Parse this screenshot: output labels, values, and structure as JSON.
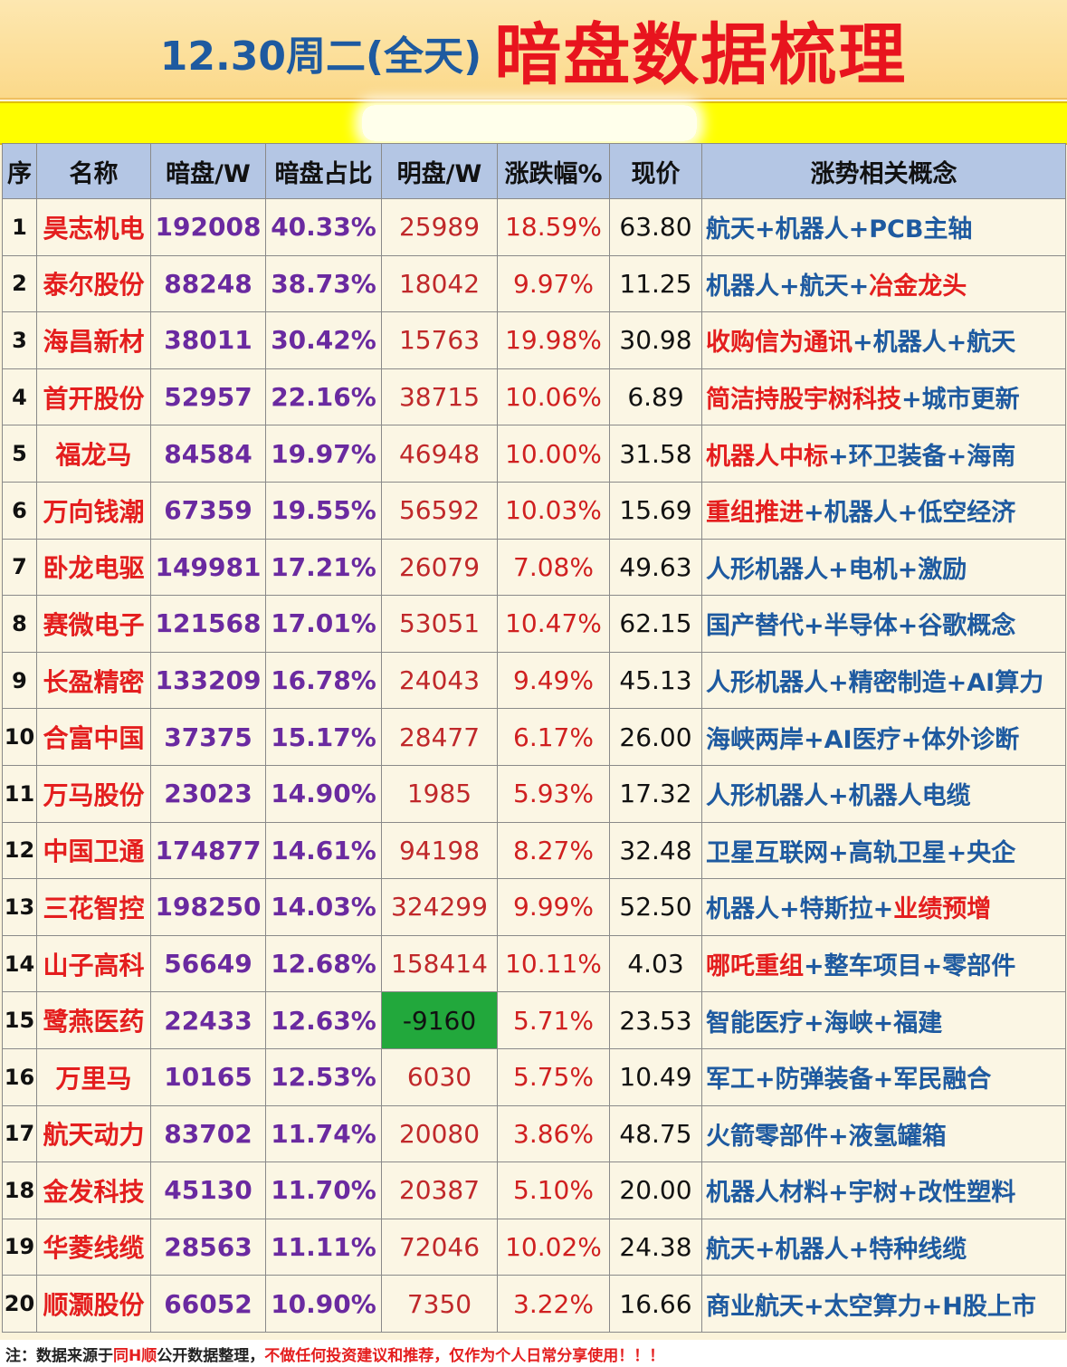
{
  "title": {
    "date": "12.30周二(全天)",
    "main": "暗盘数据梳理"
  },
  "headers": [
    "序",
    "名称",
    "暗盘/W",
    "暗盘占比",
    "明盘/W",
    "涨跌幅%",
    "现价",
    "涨势相关概念"
  ],
  "rows": [
    {
      "idx": "1",
      "name": "昊志机电",
      "dark": "192008",
      "ratio": "40.33%",
      "light": "25989",
      "pct": "18.59%",
      "price": "63.80",
      "concepts": [
        {
          "t": "航天",
          "c": "blue"
        },
        {
          "t": "+",
          "c": "blue"
        },
        {
          "t": "机器人",
          "c": "blue"
        },
        {
          "t": "+",
          "c": "blue"
        },
        {
          "t": "PCB主轴",
          "c": "blue"
        }
      ]
    },
    {
      "idx": "2",
      "name": "泰尔股份",
      "dark": "88248",
      "ratio": "38.73%",
      "light": "18042",
      "pct": "9.97%",
      "price": "11.25",
      "concepts": [
        {
          "t": "机器人",
          "c": "blue"
        },
        {
          "t": "+",
          "c": "blue"
        },
        {
          "t": "航天",
          "c": "blue"
        },
        {
          "t": "+",
          "c": "blue"
        },
        {
          "t": "冶金龙头",
          "c": "red"
        }
      ]
    },
    {
      "idx": "3",
      "name": "海昌新材",
      "dark": "38011",
      "ratio": "30.42%",
      "light": "15763",
      "pct": "19.98%",
      "price": "30.98",
      "concepts": [
        {
          "t": "收购信为通讯",
          "c": "red"
        },
        {
          "t": "+",
          "c": "blue"
        },
        {
          "t": "机器人",
          "c": "blue"
        },
        {
          "t": "+",
          "c": "blue"
        },
        {
          "t": "航天",
          "c": "blue"
        }
      ]
    },
    {
      "idx": "4",
      "name": "首开股份",
      "dark": "52957",
      "ratio": "22.16%",
      "light": "38715",
      "pct": "10.06%",
      "price": "6.89",
      "concepts": [
        {
          "t": "简洁持股宇树科技",
          "c": "red"
        },
        {
          "t": "+",
          "c": "blue"
        },
        {
          "t": "城市更新",
          "c": "blue"
        }
      ]
    },
    {
      "idx": "5",
      "name": "福龙马",
      "dark": "84584",
      "ratio": "19.97%",
      "light": "46948",
      "pct": "10.00%",
      "price": "31.58",
      "concepts": [
        {
          "t": "机器人中标",
          "c": "red"
        },
        {
          "t": "+",
          "c": "blue"
        },
        {
          "t": "环卫装备",
          "c": "blue"
        },
        {
          "t": "+",
          "c": "blue"
        },
        {
          "t": "海南",
          "c": "blue"
        }
      ]
    },
    {
      "idx": "6",
      "name": "万向钱潮",
      "dark": "67359",
      "ratio": "19.55%",
      "light": "56592",
      "pct": "10.03%",
      "price": "15.69",
      "concepts": [
        {
          "t": "重组推进",
          "c": "red"
        },
        {
          "t": "+",
          "c": "blue"
        },
        {
          "t": "机器人",
          "c": "blue"
        },
        {
          "t": "+",
          "c": "blue"
        },
        {
          "t": "低空经济",
          "c": "blue"
        }
      ]
    },
    {
      "idx": "7",
      "name": "卧龙电驱",
      "dark": "149981",
      "ratio": "17.21%",
      "light": "26079",
      "pct": "7.08%",
      "price": "49.63",
      "concepts": [
        {
          "t": "人形机器人",
          "c": "blue"
        },
        {
          "t": "+",
          "c": "blue"
        },
        {
          "t": "电机",
          "c": "blue"
        },
        {
          "t": "+",
          "c": "blue"
        },
        {
          "t": "激励",
          "c": "blue"
        }
      ]
    },
    {
      "idx": "8",
      "name": "赛微电子",
      "dark": "121568",
      "ratio": "17.01%",
      "light": "53051",
      "pct": "10.47%",
      "price": "62.15",
      "concepts": [
        {
          "t": "国产替代",
          "c": "blue"
        },
        {
          "t": "+",
          "c": "blue"
        },
        {
          "t": "半导体",
          "c": "blue"
        },
        {
          "t": "+",
          "c": "blue"
        },
        {
          "t": "谷歌概念",
          "c": "blue"
        }
      ]
    },
    {
      "idx": "9",
      "name": "长盈精密",
      "dark": "133209",
      "ratio": "16.78%",
      "light": "24043",
      "pct": "9.49%",
      "price": "45.13",
      "concepts": [
        {
          "t": "人形机器人",
          "c": "blue"
        },
        {
          "t": "+",
          "c": "blue"
        },
        {
          "t": "精密制造",
          "c": "blue"
        },
        {
          "t": "+",
          "c": "blue"
        },
        {
          "t": "AI算力",
          "c": "blue"
        }
      ]
    },
    {
      "idx": "10",
      "name": "合富中国",
      "dark": "37375",
      "ratio": "15.17%",
      "light": "28477",
      "pct": "6.17%",
      "price": "26.00",
      "concepts": [
        {
          "t": "海峡两岸",
          "c": "blue"
        },
        {
          "t": "+",
          "c": "blue"
        },
        {
          "t": "AI医疗",
          "c": "blue"
        },
        {
          "t": "+",
          "c": "blue"
        },
        {
          "t": "体外诊断",
          "c": "blue"
        }
      ]
    },
    {
      "idx": "11",
      "name": "万马股份",
      "dark": "23023",
      "ratio": "14.90%",
      "light": "1985",
      "pct": "5.93%",
      "price": "17.32",
      "concepts": [
        {
          "t": "人形机器人",
          "c": "blue"
        },
        {
          "t": "+",
          "c": "blue"
        },
        {
          "t": "机器人电缆",
          "c": "blue"
        }
      ]
    },
    {
      "idx": "12",
      "name": "中国卫通",
      "dark": "174877",
      "ratio": "14.61%",
      "light": "94198",
      "pct": "8.27%",
      "price": "32.48",
      "concepts": [
        {
          "t": "卫星互联网",
          "c": "blue"
        },
        {
          "t": "+",
          "c": "blue"
        },
        {
          "t": "高轨卫星",
          "c": "blue"
        },
        {
          "t": "+",
          "c": "blue"
        },
        {
          "t": "央企",
          "c": "blue"
        }
      ]
    },
    {
      "idx": "13",
      "name": "三花智控",
      "dark": "198250",
      "ratio": "14.03%",
      "light": "324299",
      "pct": "9.99%",
      "price": "52.50",
      "concepts": [
        {
          "t": "机器人",
          "c": "blue"
        },
        {
          "t": "+",
          "c": "blue"
        },
        {
          "t": "特斯拉",
          "c": "blue"
        },
        {
          "t": "+",
          "c": "blue"
        },
        {
          "t": "业绩预增",
          "c": "red"
        }
      ]
    },
    {
      "idx": "14",
      "name": "山子高科",
      "dark": "56649",
      "ratio": "12.68%",
      "light": "158414",
      "pct": "10.11%",
      "price": "4.03",
      "concepts": [
        {
          "t": "哪吒重组",
          "c": "red"
        },
        {
          "t": "+",
          "c": "blue"
        },
        {
          "t": "整车项目",
          "c": "blue"
        },
        {
          "t": "+",
          "c": "blue"
        },
        {
          "t": "零部件",
          "c": "blue"
        }
      ]
    },
    {
      "idx": "15",
      "name": "鹭燕医药",
      "dark": "22433",
      "ratio": "12.63%",
      "light": "-9160",
      "pct": "5.71%",
      "price": "23.53",
      "concepts": [
        {
          "t": "智能医疗",
          "c": "blue"
        },
        {
          "t": "+",
          "c": "blue"
        },
        {
          "t": "海峡",
          "c": "blue"
        },
        {
          "t": "+",
          "c": "blue"
        },
        {
          "t": "福建",
          "c": "blue"
        }
      ]
    },
    {
      "idx": "16",
      "name": "万里马",
      "dark": "10165",
      "ratio": "12.53%",
      "light": "6030",
      "pct": "5.75%",
      "price": "10.49",
      "concepts": [
        {
          "t": "军工",
          "c": "blue"
        },
        {
          "t": "+",
          "c": "blue"
        },
        {
          "t": "防弹装备",
          "c": "blue"
        },
        {
          "t": "+",
          "c": "blue"
        },
        {
          "t": "军民融合",
          "c": "blue"
        }
      ]
    },
    {
      "idx": "17",
      "name": "航天动力",
      "dark": "83702",
      "ratio": "11.74%",
      "light": "20080",
      "pct": "3.86%",
      "price": "48.75",
      "concepts": [
        {
          "t": "火箭零部件",
          "c": "blue"
        },
        {
          "t": "+",
          "c": "blue"
        },
        {
          "t": "液氢罐箱",
          "c": "blue"
        }
      ]
    },
    {
      "idx": "18",
      "name": "金发科技",
      "dark": "45130",
      "ratio": "11.70%",
      "light": "20387",
      "pct": "5.10%",
      "price": "20.00",
      "concepts": [
        {
          "t": "机器人材料",
          "c": "blue"
        },
        {
          "t": "+",
          "c": "blue"
        },
        {
          "t": "宇树",
          "c": "blue"
        },
        {
          "t": "+",
          "c": "blue"
        },
        {
          "t": "改性塑料",
          "c": "blue"
        }
      ]
    },
    {
      "idx": "19",
      "name": "华菱线缆",
      "dark": "28563",
      "ratio": "11.11%",
      "light": "72046",
      "pct": "10.02%",
      "price": "24.38",
      "concepts": [
        {
          "t": "航天",
          "c": "blue"
        },
        {
          "t": "+",
          "c": "blue"
        },
        {
          "t": "机器人",
          "c": "blue"
        },
        {
          "t": "+",
          "c": "blue"
        },
        {
          "t": "特种线缆",
          "c": "blue"
        }
      ]
    },
    {
      "idx": "20",
      "name": "顺灏股份",
      "dark": "66052",
      "ratio": "10.90%",
      "light": "7350",
      "pct": "3.22%",
      "price": "16.66",
      "concepts": [
        {
          "t": "商业航天",
          "c": "blue"
        },
        {
          "t": "+",
          "c": "blue"
        },
        {
          "t": "太空算力",
          "c": "blue"
        },
        {
          "t": "+",
          "c": "blue"
        },
        {
          "t": "H股上市",
          "c": "blue"
        }
      ]
    }
  ],
  "footer": [
    {
      "t": "注：数据来源于",
      "c": "dark"
    },
    {
      "t": "同H顺",
      "c": "red"
    },
    {
      "t": "公开数据整理，",
      "c": "dark"
    },
    {
      "t": "不做任何投资建议和推荐，仅作为个人日常分享使用！！！",
      "c": "red"
    }
  ],
  "colors": {
    "accent_red": "#e41e1e",
    "accent_blue": "#1e5aa0",
    "header_bg": "#b4c6e4",
    "negative_bg": "#22a83c"
  }
}
